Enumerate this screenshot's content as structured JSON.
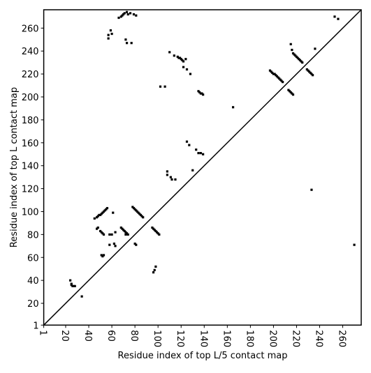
{
  "chart_data": {
    "type": "scatter",
    "xlabel": "Residue index of top L/5 contact map",
    "ylabel": "Residue index of top L contact map",
    "xlim": [
      1,
      276
    ],
    "ylim": [
      1,
      276
    ],
    "xticks": [
      1,
      20,
      40,
      60,
      80,
      100,
      120,
      140,
      160,
      180,
      200,
      220,
      240,
      260
    ],
    "yticks": [
      1,
      20,
      40,
      60,
      80,
      100,
      120,
      140,
      160,
      180,
      200,
      220,
      240,
      260
    ],
    "color": "#000000",
    "x": [
      24,
      25,
      25,
      26,
      27,
      28,
      34,
      51,
      52,
      53,
      47,
      48,
      45,
      47,
      48,
      49,
      50,
      51,
      52,
      53,
      54,
      55,
      56,
      50,
      51,
      52,
      53,
      58,
      60,
      58,
      62,
      63,
      63,
      61,
      68,
      69,
      70,
      71,
      72,
      73,
      74,
      72,
      78,
      79,
      80,
      81,
      82,
      83,
      84,
      85,
      86,
      87,
      80,
      81,
      95,
      96,
      97,
      98,
      99,
      100,
      101,
      98,
      97,
      96,
      108,
      108,
      111,
      112,
      115,
      125,
      127,
      133,
      135,
      137,
      139,
      130,
      102,
      106,
      110,
      114,
      117,
      118,
      119,
      120,
      121,
      122,
      124,
      125,
      128,
      122,
      135,
      136,
      137,
      138,
      139,
      165,
      197,
      198,
      199,
      200,
      201,
      202,
      203,
      204,
      205,
      206,
      207,
      208,
      213,
      214,
      215,
      216,
      217,
      215,
      216,
      217,
      218,
      219,
      220,
      221,
      222,
      223,
      224,
      225,
      229,
      230,
      231,
      232,
      233,
      234,
      236,
      233,
      253,
      256,
      270,
      57,
      57,
      59,
      60,
      66,
      68,
      69,
      70,
      71,
      73,
      74,
      76,
      79,
      81,
      72,
      73,
      77
    ],
    "values": [
      40,
      37,
      36,
      35,
      35,
      35,
      26,
      62,
      61,
      62,
      85,
      86,
      94,
      95,
      96,
      97,
      97,
      98,
      99,
      100,
      101,
      102,
      103,
      83,
      82,
      81,
      80,
      80,
      80,
      71,
      72,
      70,
      82,
      99,
      86,
      85,
      84,
      83,
      82,
      81,
      80,
      80,
      104,
      103,
      102,
      101,
      100,
      99,
      98,
      97,
      96,
      95,
      72,
      71,
      86,
      85,
      84,
      83,
      82,
      81,
      80,
      52,
      49,
      47,
      135,
      132,
      130,
      128,
      128,
      161,
      158,
      154,
      151,
      151,
      150,
      136,
      209,
      209,
      239,
      236,
      235,
      234,
      234,
      233,
      232,
      231,
      233,
      224,
      220,
      226,
      205,
      204,
      203,
      203,
      202,
      191,
      223,
      222,
      221,
      220,
      220,
      219,
      218,
      217,
      216,
      215,
      214,
      213,
      206,
      205,
      204,
      203,
      202,
      246,
      241,
      238,
      237,
      236,
      235,
      234,
      233,
      232,
      231,
      230,
      224,
      223,
      222,
      221,
      220,
      219,
      242,
      119,
      270,
      268,
      71,
      254,
      251,
      258,
      255,
      269,
      270,
      271,
      272,
      273,
      274,
      272,
      273,
      272,
      271,
      250,
      247,
      247
    ]
  }
}
